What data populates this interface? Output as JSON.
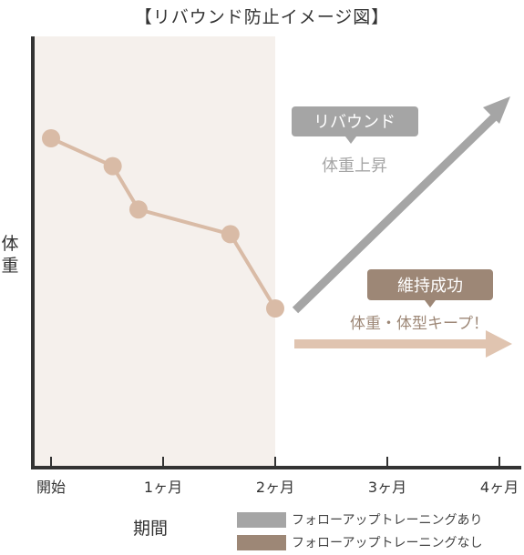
{
  "title": "【リバウンド防止イメージ図】",
  "colors": {
    "background_band": "#f5f0ec",
    "axis": "#333333",
    "series_line": "#d9bba6",
    "rebound": "#a5a5a5",
    "maintain": "#9d8776",
    "maintain_arrow": "#e0c4b0"
  },
  "chart_data": {
    "type": "line",
    "title": "【リバウンド防止イメージ図】",
    "xlabel": "期間",
    "ylabel": "体重",
    "x_ticks": [
      "開始",
      "1ヶ月",
      "2ヶ月",
      "3ヶ月",
      "4ヶ月"
    ],
    "xlim": [
      0,
      4
    ],
    "ylim": [
      0,
      10
    ],
    "grid": false,
    "legend_position": "bottom-right",
    "highlight_range": [
      0,
      2
    ],
    "series": [
      {
        "x": [
          0,
          0.55,
          0.78,
          1.6,
          2.0
        ],
        "y": [
          9.0,
          8.1,
          6.7,
          5.9,
          3.5
        ]
      }
    ],
    "annotations": [
      {
        "label": "リバウンド",
        "sublabel": "体重上昇",
        "trend": "up"
      },
      {
        "label": "維持成功",
        "sublabel": "体重・体型キープ！",
        "trend": "flat"
      }
    ],
    "legend": [
      {
        "label": "フォローアップトレーニングあり",
        "color": "#a5a5a5"
      },
      {
        "label": "フォローアップトレーニングなし",
        "color": "#9d8776"
      }
    ]
  }
}
